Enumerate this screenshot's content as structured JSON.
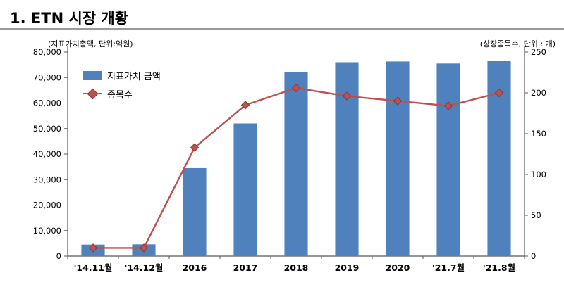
{
  "title": "1. ETN 시장 개황",
  "chart_data": {
    "type": "combo-bar-line",
    "left_axis_unit": "(지표가치총액, 단위:억원)",
    "right_axis_unit": "(상장종목수, 단위 : 개)",
    "categories": [
      "'14.11월",
      "'14.12월",
      "2016",
      "2017",
      "2018",
      "2019",
      "2020",
      "'21.7월",
      "'21.8월"
    ],
    "series": [
      {
        "name": "지표가치 금액",
        "type": "bar",
        "axis": "left",
        "color": "#4f81bd",
        "values": [
          4500,
          4600,
          34500,
          52000,
          72000,
          76000,
          76300,
          75500,
          76500
        ]
      },
      {
        "name": "종목수",
        "type": "line",
        "axis": "right",
        "color": "#c0504d",
        "marker": "diamond",
        "marker_border": "#8c3836",
        "values": [
          10,
          10,
          133,
          185,
          206,
          196,
          190,
          184,
          200
        ]
      }
    ],
    "left_axis": {
      "min": 0,
      "max": 80000,
      "step": 10000
    },
    "right_axis": {
      "min": 0,
      "max": 250,
      "step": 50
    },
    "grid": "off",
    "legend_position": "inside-top-left"
  }
}
